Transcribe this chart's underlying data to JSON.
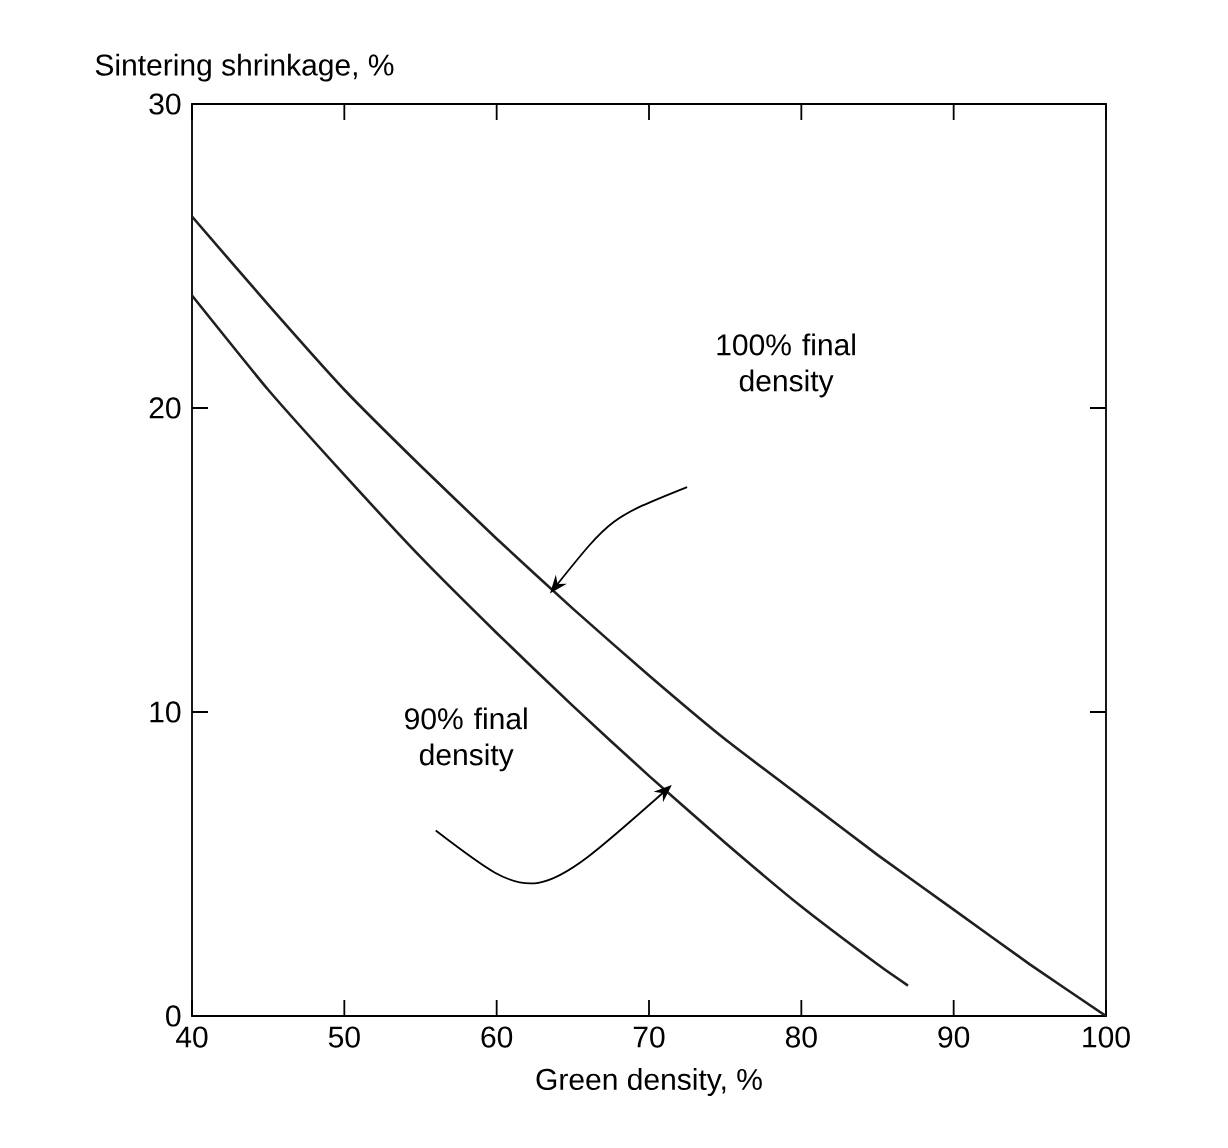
{
  "chart_data": {
    "type": "line",
    "xlabel": "Green density, %",
    "ylabel": "Sintering shrinkage, %",
    "xlim": [
      40,
      100
    ],
    "ylim": [
      0,
      30
    ],
    "xticks": [
      40,
      50,
      60,
      70,
      80,
      90,
      100
    ],
    "yticks": [
      0,
      10,
      20,
      30
    ],
    "marker": "none",
    "line_style": "solid",
    "series": [
      {
        "color": "#231f20",
        "x": [
          40,
          45,
          50,
          55,
          60,
          65,
          70,
          75,
          80,
          85,
          90,
          95,
          100
        ],
        "values": [
          26.3,
          23.4,
          20.6,
          18.1,
          15.7,
          13.4,
          11.2,
          9.1,
          7.2,
          5.3,
          3.5,
          1.7,
          0
        ]
      },
      {
        "color": "#231f20",
        "x": [
          40,
          45,
          50,
          55,
          60,
          65,
          70,
          75,
          80,
          85,
          87
        ],
        "values": [
          23.7,
          20.6,
          17.8,
          15.1,
          12.6,
          10.2,
          7.9,
          5.7,
          3.6,
          1.7,
          1.0
        ]
      }
    ],
    "annotations": [
      "100% final density",
      "90% final density"
    ]
  }
}
